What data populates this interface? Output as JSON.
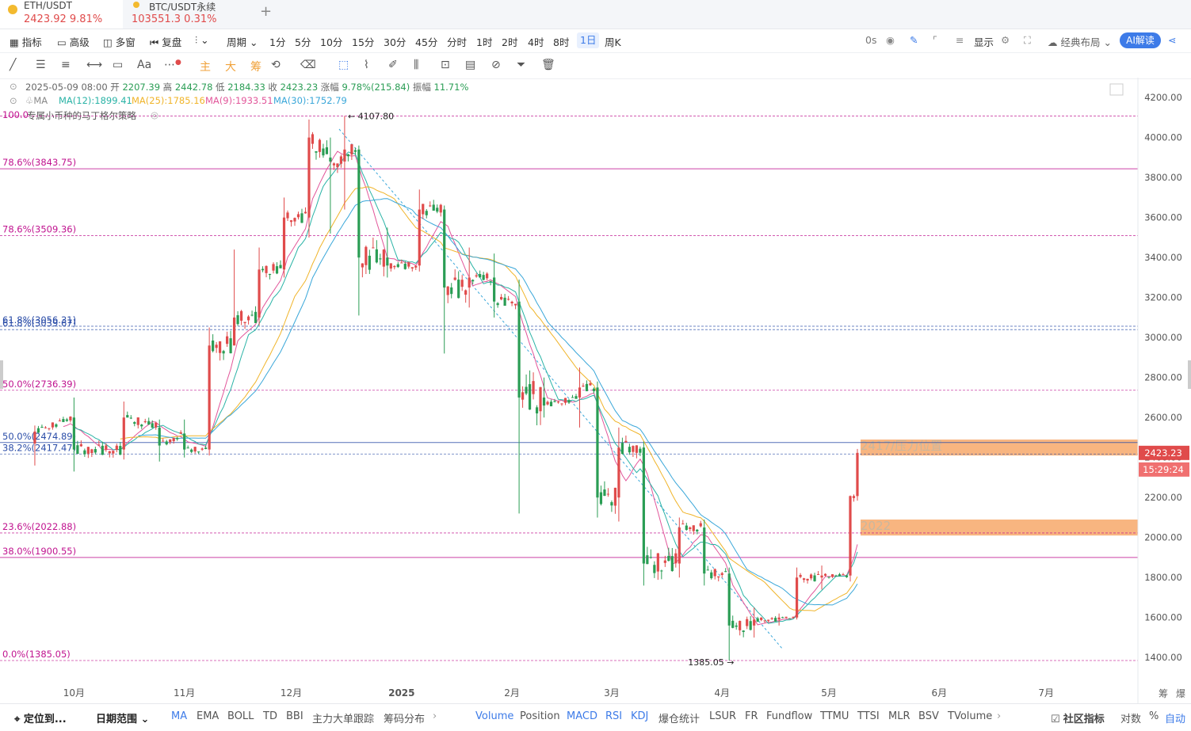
{
  "tabs": [
    {
      "symbol": "ETH/USDT",
      "price": "2423.92",
      "change": "9.81%"
    },
    {
      "symbol": "BTC/USDT永续",
      "price": "103551.3",
      "change": "0.31%"
    }
  ],
  "add_tab": "+",
  "toolbar": {
    "indicator": "指标",
    "advanced": "高级",
    "multi_window": "多窗",
    "replay": "复盘",
    "period": "周期",
    "timeframes": [
      "1分",
      "5分",
      "10分",
      "15分",
      "30分",
      "45分",
      "分时",
      "1时",
      "2时",
      "4时",
      "8时",
      "1日",
      "周K"
    ],
    "selected_timeframe": "1日",
    "countdown": "0s",
    "display": "显示",
    "layout": "经典布局",
    "ai_read": "AI解读"
  },
  "drawing_tools": [
    "主",
    "大",
    "筹"
  ],
  "info": {
    "date": "2025-05-09 08:00",
    "open_label": "开",
    "open": "2207.39",
    "high_label": "高",
    "high": "2442.78",
    "low_label": "低",
    "low": "2184.33",
    "close_label": "收",
    "close": "2423.23",
    "change_label": "涨幅",
    "change": "9.78%(215.84)",
    "amp_label": "振幅",
    "amp": "11.71%",
    "ma_label": "MA",
    "ma12": "MA(12):1899.41",
    "ma25": "MA(25):1785.16",
    "ma9": "MA(9):1933.51",
    "ma30": "MA(30):1752.79",
    "strategy_prefix": "100.0",
    "strategy": "专属小币种的马丁格尔策略"
  },
  "colors": {
    "ma12": "#2ab3a6",
    "ma25": "#f0b429",
    "ma9": "#e2569a",
    "ma30": "#3aa7d9",
    "up": "#e04b4b",
    "down": "#2a9d54",
    "fib": "#c0138f",
    "fib_blue": "#2b4da8",
    "zone": "#f7a86a"
  },
  "chart_data": {
    "type": "candlestick",
    "y_axis": {
      "ticks": [
        1400,
        1600,
        1800,
        2000,
        2200,
        2400,
        2600,
        2800,
        3000,
        3200,
        3400,
        3600,
        3800,
        4000,
        4200
      ],
      "ylim": [
        1290,
        4260
      ]
    },
    "x_axis": {
      "ticks": [
        "10月",
        "11月",
        "12月",
        "2025",
        "2月",
        "3月",
        "4月",
        "5月",
        "6月",
        "7月"
      ]
    },
    "candles": [
      {
        "m": "2024-09-20",
        "o": 2470,
        "h": 2560,
        "l": 2360,
        "c": 2530
      },
      {
        "m": "2024-10-01",
        "o": 2600,
        "h": 2700,
        "l": 2330,
        "c": 2440
      },
      {
        "m": "2024-10-15",
        "o": 2440,
        "h": 2680,
        "l": 2390,
        "c": 2600
      },
      {
        "m": "2024-10-25",
        "o": 2550,
        "h": 2590,
        "l": 2380,
        "c": 2460
      },
      {
        "m": "2024-11-01",
        "o": 2520,
        "h": 2590,
        "l": 2400,
        "c": 2440
      },
      {
        "m": "2024-11-08",
        "o": 2440,
        "h": 3050,
        "l": 2410,
        "c": 2960
      },
      {
        "m": "2024-11-15",
        "o": 2960,
        "h": 3440,
        "l": 2970,
        "c": 3100
      },
      {
        "m": "2024-11-22",
        "o": 3100,
        "h": 3450,
        "l": 3060,
        "c": 3340
      },
      {
        "m": "2024-11-29",
        "o": 3340,
        "h": 3700,
        "l": 3300,
        "c": 3600
      },
      {
        "m": "2024-12-06",
        "o": 3600,
        "h": 4090,
        "l": 3500,
        "c": 4000
      },
      {
        "m": "2024-12-12",
        "o": 3900,
        "h": 4000,
        "l": 3520,
        "c": 3880
      },
      {
        "m": "2024-12-16",
        "o": 3880,
        "h": 4107.8,
        "l": 3640,
        "c": 3940
      },
      {
        "m": "2024-12-20",
        "o": 3940,
        "h": 3960,
        "l": 3110,
        "c": 3400
      },
      {
        "m": "2024-12-28",
        "o": 3400,
        "h": 3550,
        "l": 3300,
        "c": 3360
      },
      {
        "m": "2025-01-06",
        "o": 3360,
        "h": 3740,
        "l": 3330,
        "c": 3640
      },
      {
        "m": "2025-01-13",
        "o": 3640,
        "h": 3660,
        "l": 2920,
        "c": 3250
      },
      {
        "m": "2025-01-20",
        "o": 3250,
        "h": 3450,
        "l": 3150,
        "c": 3300
      },
      {
        "m": "2025-01-27",
        "o": 3300,
        "h": 3420,
        "l": 3100,
        "c": 3180
      },
      {
        "m": "2025-02-03",
        "o": 3180,
        "h": 3290,
        "l": 2120,
        "c": 2700
      },
      {
        "m": "2025-02-10",
        "o": 2700,
        "h": 2800,
        "l": 2600,
        "c": 2660
      },
      {
        "m": "2025-02-20",
        "o": 2700,
        "h": 2850,
        "l": 2550,
        "c": 2750
      },
      {
        "m": "2025-02-25",
        "o": 2750,
        "h": 2780,
        "l": 2100,
        "c": 2200
      },
      {
        "m": "2025-03-03",
        "o": 2200,
        "h": 2550,
        "l": 2080,
        "c": 2450
      },
      {
        "m": "2025-03-10",
        "o": 2450,
        "h": 2480,
        "l": 1760,
        "c": 1870
      },
      {
        "m": "2025-03-20",
        "o": 1870,
        "h": 2100,
        "l": 1800,
        "c": 2050
      },
      {
        "m": "2025-03-27",
        "o": 2050,
        "h": 2090,
        "l": 1760,
        "c": 1820
      },
      {
        "m": "2025-04-03",
        "o": 1820,
        "h": 1850,
        "l": 1385.05,
        "c": 1560
      },
      {
        "m": "2025-04-10",
        "o": 1560,
        "h": 1650,
        "l": 1500,
        "c": 1590
      },
      {
        "m": "2025-04-17",
        "o": 1590,
        "h": 1620,
        "l": 1560,
        "c": 1600
      },
      {
        "m": "2025-04-22",
        "o": 1600,
        "h": 1850,
        "l": 1590,
        "c": 1800
      },
      {
        "m": "2025-04-29",
        "o": 1800,
        "h": 1860,
        "l": 1740,
        "c": 1810
      },
      {
        "m": "2025-05-07",
        "o": 1810,
        "h": 2210,
        "l": 1780,
        "c": 2207.39
      },
      {
        "m": "2025-05-09",
        "o": 2207.39,
        "h": 2442.78,
        "l": 2184.33,
        "c": 2423.23
      }
    ],
    "fib_levels": [
      {
        "label": "100.0",
        "value": 4107.8
      },
      {
        "label": "78.6%(3843.75)",
        "value": 3843.75
      },
      {
        "label": "78.6%(3509.36)",
        "value": 3509.36
      },
      {
        "label": "61.8%(3056.31)",
        "value": 3056.31
      },
      {
        "label": "61.8%(3039.67)",
        "value": 3039.67
      },
      {
        "label": "50.0%(2736.39)",
        "value": 2736.39
      },
      {
        "label": "50.0%(2474.89)",
        "value": 2474.89
      },
      {
        "label": "38.2%(2417.47)",
        "value": 2417.47
      },
      {
        "label": "23.6%(2022.88)",
        "value": 2022.88
      },
      {
        "label": "38.0%(1900.55)",
        "value": 1900.55
      },
      {
        "label": "0.0%(1385.05)",
        "value": 1385.05
      }
    ],
    "zones": [
      {
        "label": "2417/压力位置",
        "top": 2490,
        "bottom": 2410
      },
      {
        "label": "2022",
        "top": 2090,
        "bottom": 2010
      }
    ],
    "annotations": {
      "high": "4107.80",
      "low": "1385.05"
    },
    "price_tag": {
      "price": "2423.23",
      "timer": "15:29:24"
    }
  },
  "bottom": {
    "locate": "定位到...",
    "date_range": "日期范围",
    "indicators": [
      "MA",
      "EMA",
      "BOLL",
      "TD",
      "BBI",
      "主力大单跟踪",
      "筹码分布"
    ],
    "sub_indicators": [
      "Volume",
      "Position",
      "MACD",
      "RSI",
      "KDJ",
      "爆仓统计",
      "LSUR",
      "FR",
      "Fundflow",
      "TTMU",
      "TTSI",
      "MLR",
      "BSV",
      "TVolume"
    ],
    "community": "社区指标",
    "log": "对数",
    "percent": "%",
    "auto": "自动"
  },
  "right_edge_labels": [
    "筹",
    "爆"
  ]
}
